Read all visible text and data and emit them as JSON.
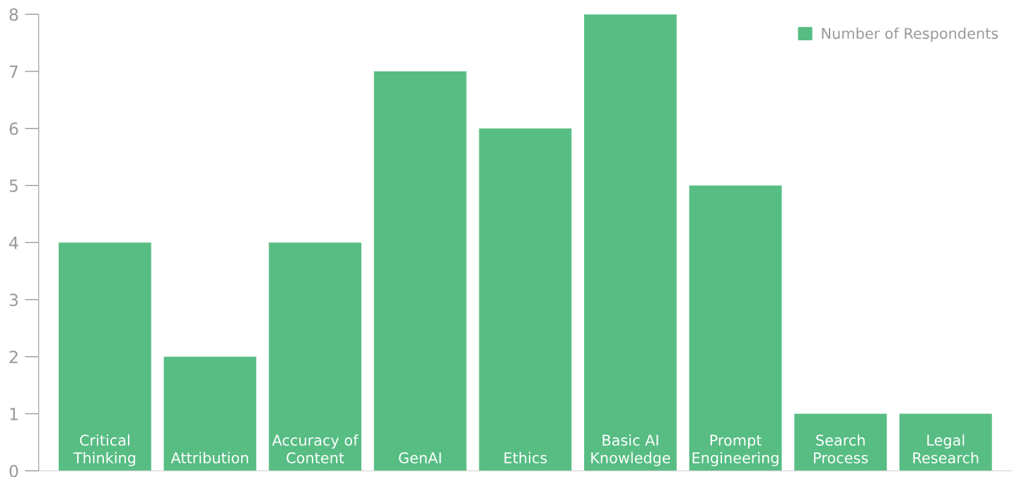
{
  "chart_data": {
    "type": "bar",
    "categories": [
      "Critical\nThinking",
      "Attribution",
      "Accuracy of\nContent",
      "GenAI",
      "Ethics",
      "Basic AI\nKnowledge",
      "Prompt\nEngineering",
      "Search\nProcess",
      "Legal\nResearch"
    ],
    "series": [
      {
        "name": "Number of Respondents",
        "color": "#57bd83",
        "values": [
          4,
          2,
          4,
          7,
          6,
          8,
          5,
          1,
          1
        ]
      }
    ],
    "ylim": [
      0,
      8
    ],
    "yticks": [
      0,
      1,
      2,
      3,
      4,
      5,
      6,
      7,
      8
    ],
    "grid": false,
    "legend": "top right"
  }
}
